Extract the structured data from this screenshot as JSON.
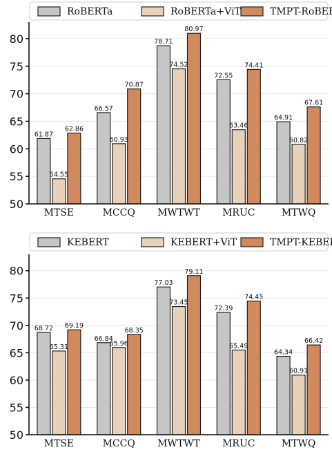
{
  "colors": {
    "series1": "#c6c6c6",
    "series2": "#e6d2bb",
    "series3": "#d18a5e"
  },
  "chart_data": [
    {
      "type": "bar",
      "categories": [
        "MTSE",
        "MCCQ",
        "MWTWT",
        "MRUC",
        "MTWQ"
      ],
      "series": [
        {
          "name": "RoBERTa",
          "values": [
            61.87,
            66.57,
            78.71,
            72.55,
            64.91
          ]
        },
        {
          "name": "RoBERTa+ViT",
          "values": [
            54.55,
            60.93,
            74.52,
            63.46,
            60.82
          ]
        },
        {
          "name": "TMPT-RoBERTa",
          "values": [
            62.86,
            70.87,
            80.97,
            74.41,
            67.61
          ]
        }
      ],
      "ylim": [
        50,
        83
      ],
      "yticks": [
        50,
        55,
        60,
        65,
        70,
        75,
        80
      ],
      "grid": true,
      "legend_position": "top"
    },
    {
      "type": "bar",
      "categories": [
        "MTSE",
        "MCCQ",
        "MWTWT",
        "MRUC",
        "MTWQ"
      ],
      "series": [
        {
          "name": "KEBERT",
          "values": [
            68.72,
            66.84,
            77.03,
            72.39,
            64.34
          ]
        },
        {
          "name": "KEBERT+ViT",
          "values": [
            65.31,
            65.96,
            73.45,
            65.49,
            60.91
          ]
        },
        {
          "name": "TMPT-KEBERT",
          "values": [
            69.19,
            68.35,
            79.11,
            74.45,
            66.42
          ]
        }
      ],
      "ylim": [
        50,
        83
      ],
      "yticks": [
        50,
        55,
        60,
        65,
        70,
        75,
        80
      ],
      "grid": true,
      "legend_position": "top"
    }
  ]
}
